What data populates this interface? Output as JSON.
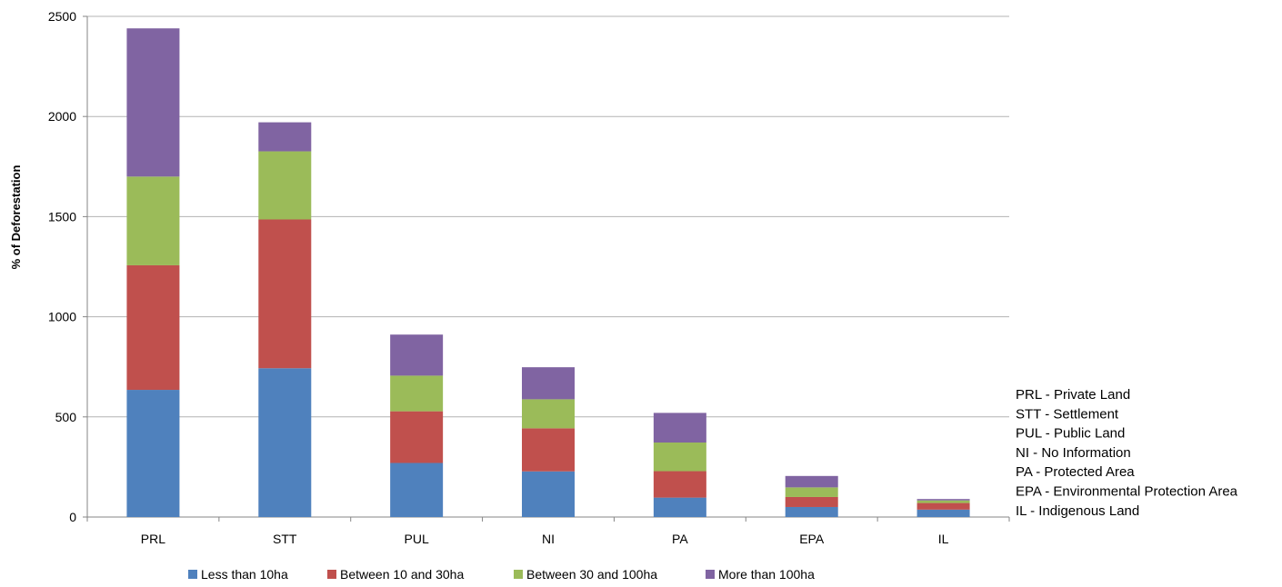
{
  "chart_data": {
    "type": "bar",
    "stacked": true,
    "ylabel": "% of Deforestation",
    "xlabel": "",
    "ylim": [
      0,
      2500
    ],
    "yticks": [
      0,
      500,
      1000,
      1500,
      2000,
      2500
    ],
    "grid": true,
    "legend_position": "bottom",
    "categories": [
      "PRL",
      "STT",
      "PUL",
      "NI",
      "PA",
      "EPA",
      "IL"
    ],
    "series": [
      {
        "name": "Less than 10ha",
        "color": "#4f81bd",
        "values": [
          635,
          743,
          270,
          228,
          97,
          50,
          37
        ]
      },
      {
        "name": "Between 10 and 30ha",
        "color": "#c0504d",
        "values": [
          622,
          743,
          258,
          215,
          132,
          50,
          33
        ]
      },
      {
        "name": "Between 30 and 100ha",
        "color": "#9bbb59",
        "values": [
          443,
          340,
          178,
          145,
          143,
          48,
          13
        ]
      },
      {
        "name": "More than 100ha",
        "color": "#8064a2",
        "values": [
          740,
          145,
          205,
          160,
          148,
          57,
          7
        ]
      }
    ],
    "annotations": [
      "PRL - Private Land",
      "STT - Settlement",
      "PUL - Public Land",
      "NI - No Information",
      "PA - Protected Area",
      "EPA - Environmental Protection Area",
      "IL - Indigenous Land"
    ]
  }
}
